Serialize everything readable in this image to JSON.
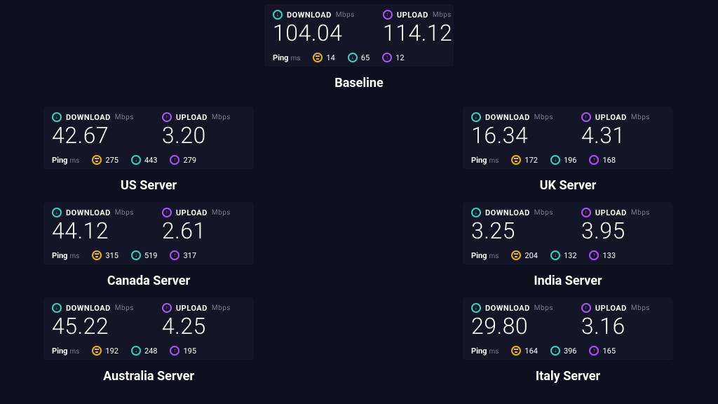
{
  "labels": {
    "download": "DOWNLOAD",
    "upload": "UPLOAD",
    "mbps": "Mbps",
    "ping": "Ping",
    "ms": "ms"
  },
  "colors": {
    "background": "#0d0f1e",
    "card_bg": "#141526",
    "download_accent": "#2dd4bf",
    "upload_accent": "#a855f7",
    "ping_yellow": "#eab308",
    "text_muted": "#7a7a8c",
    "text": "#ffffff"
  },
  "typography": {
    "value_fontsize": 32,
    "value_fontweight": 300,
    "label_fontsize": 11,
    "caption_fontsize": 18,
    "caption_fontweight": 700
  },
  "cards": {
    "baseline": {
      "caption": "Baseline",
      "download": "104.04",
      "upload": "114.12",
      "ping": {
        "idle": "14",
        "down": "65",
        "up": "12"
      }
    },
    "us": {
      "caption": "US Server",
      "download": "42.67",
      "upload": "3.20",
      "ping": {
        "idle": "275",
        "down": "443",
        "up": "279"
      }
    },
    "uk": {
      "caption": "UK Server",
      "download": "16.34",
      "upload": "4.31",
      "ping": {
        "idle": "172",
        "down": "196",
        "up": "168"
      }
    },
    "canada": {
      "caption": "Canada Server",
      "download": "44.12",
      "upload": "2.61",
      "ping": {
        "idle": "315",
        "down": "519",
        "up": "317"
      }
    },
    "india": {
      "caption": "India Server",
      "download": "3.25",
      "upload": "3.95",
      "ping": {
        "idle": "204",
        "down": "132",
        "up": "133"
      }
    },
    "aus": {
      "caption": "Australia Server",
      "download": "45.22",
      "upload": "4.25",
      "ping": {
        "idle": "192",
        "down": "248",
        "up": "195"
      }
    },
    "italy": {
      "caption": "Italy Server",
      "download": "29.80",
      "upload": "3.16",
      "ping": {
        "idle": "164",
        "down": "396",
        "up": "165"
      }
    }
  }
}
